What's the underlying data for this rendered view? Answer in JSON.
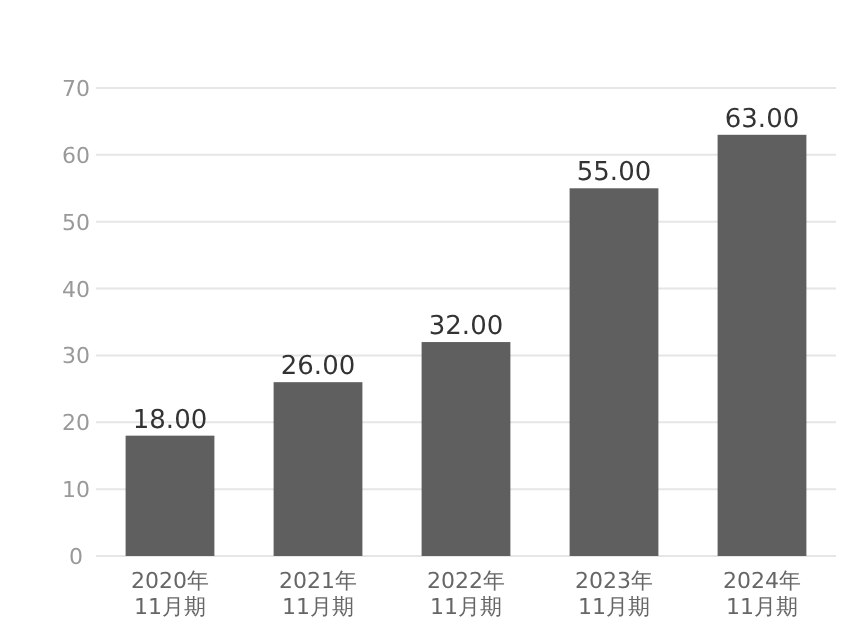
{
  "chart_data": {
    "type": "bar",
    "categories": [
      "2020年\n11月期",
      "2021年\n11月期",
      "2022年\n11月期",
      "2023年\n11月期",
      "2024年\n11月期"
    ],
    "values": [
      18.0,
      26.0,
      32.0,
      55.0,
      63.0
    ],
    "value_labels": [
      "18.00",
      "26.00",
      "32.00",
      "55.00",
      "63.00"
    ],
    "color": "#5f5f5f",
    "ylim": [
      0,
      70
    ],
    "yticks": [
      0,
      10,
      20,
      30,
      40,
      50,
      60,
      70
    ],
    "grid": "y"
  }
}
